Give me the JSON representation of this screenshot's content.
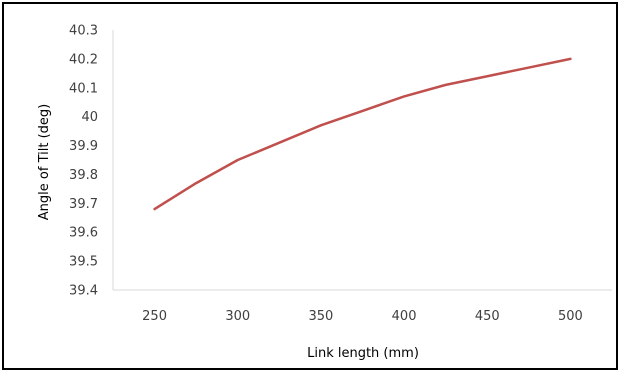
{
  "chart_data": {
    "type": "line",
    "title": "",
    "xlabel": "Link length (mm)",
    "ylabel": "Angle of Tilt (deg)",
    "xlim": [
      225,
      525
    ],
    "ylim": [
      39.4,
      40.3
    ],
    "x_ticks": [
      250,
      300,
      350,
      400,
      450,
      500
    ],
    "y_ticks": [
      39.4,
      39.5,
      39.6,
      39.7,
      39.8,
      39.9,
      40,
      40.1,
      40.2,
      40.3
    ],
    "x_tick_labels": [
      "250",
      "300",
      "350",
      "400",
      "450",
      "500"
    ],
    "y_tick_labels": [
      "39.4",
      "39.5",
      "39.6",
      "39.7",
      "39.8",
      "39.9",
      "40",
      "40.1",
      "40.2",
      "40.3"
    ],
    "grid": false,
    "legend": "none",
    "series": [
      {
        "color": "#c0504d",
        "x": [
          250,
          275,
          300,
          325,
          350,
          375,
          400,
          425,
          450,
          475,
          500
        ],
        "y": [
          39.68,
          39.77,
          39.85,
          39.91,
          39.97,
          40.02,
          40.07,
          40.11,
          40.14,
          40.17,
          40.2
        ]
      }
    ]
  }
}
